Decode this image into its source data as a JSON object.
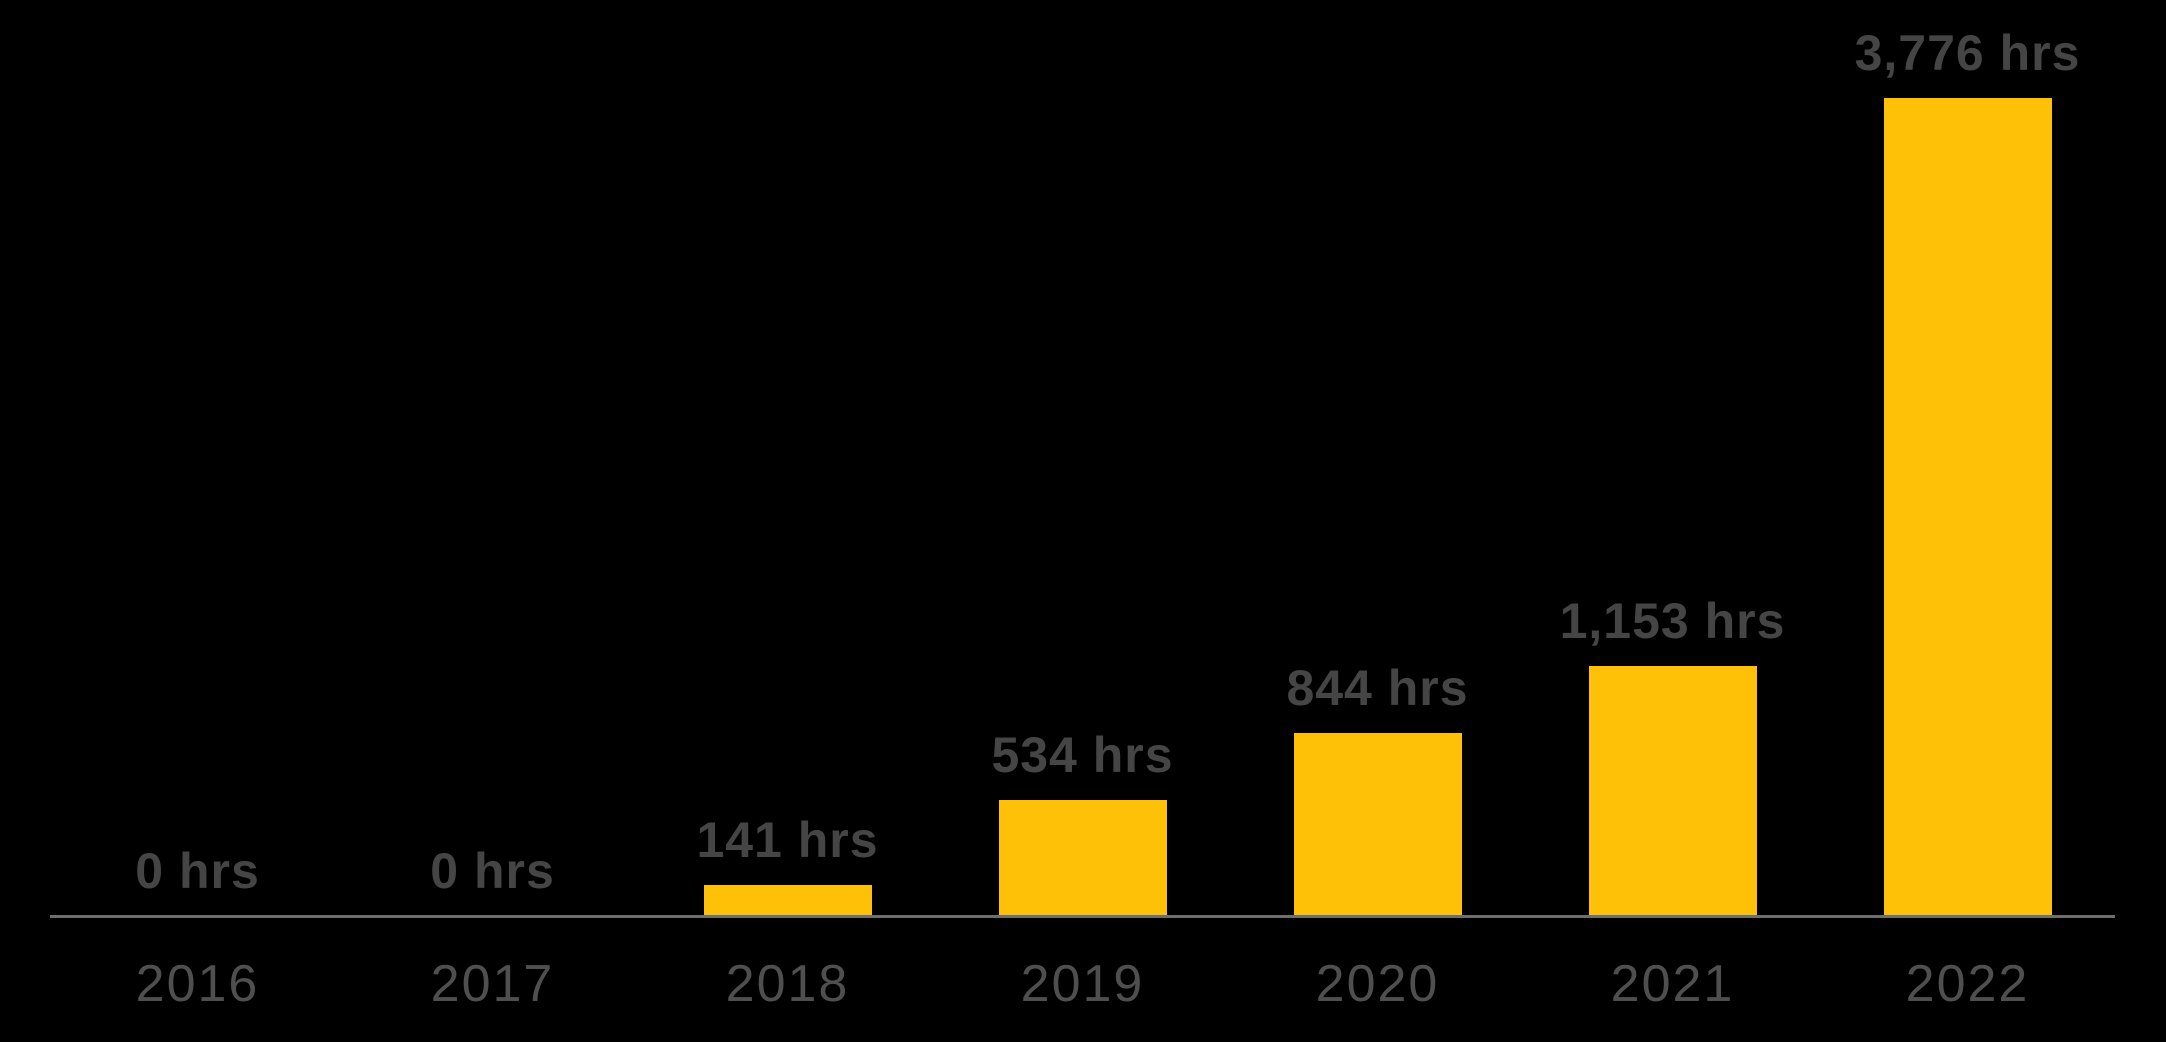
{
  "chart_data": {
    "type": "bar",
    "title": "",
    "categories": [
      "2016",
      "2017",
      "2018",
      "2019",
      "2020",
      "2021",
      "2022"
    ],
    "values": [
      0,
      0,
      141,
      534,
      844,
      1153,
      3776
    ],
    "value_labels": [
      "0 hrs",
      "0 hrs",
      "141 hrs",
      "534 hrs",
      "844 hrs",
      "1,153 hrs",
      "3,776 hrs"
    ],
    "unit": "hrs",
    "xlabel": "",
    "ylabel": "",
    "ylim": [
      0,
      3776
    ],
    "grid": false,
    "legend_position": "none",
    "colors": {
      "bar": "#FFC107",
      "value_label": "#454545",
      "year_label": "#4F4F4F",
      "axis_line": "#6E6E6E",
      "background": "#000000"
    }
  }
}
